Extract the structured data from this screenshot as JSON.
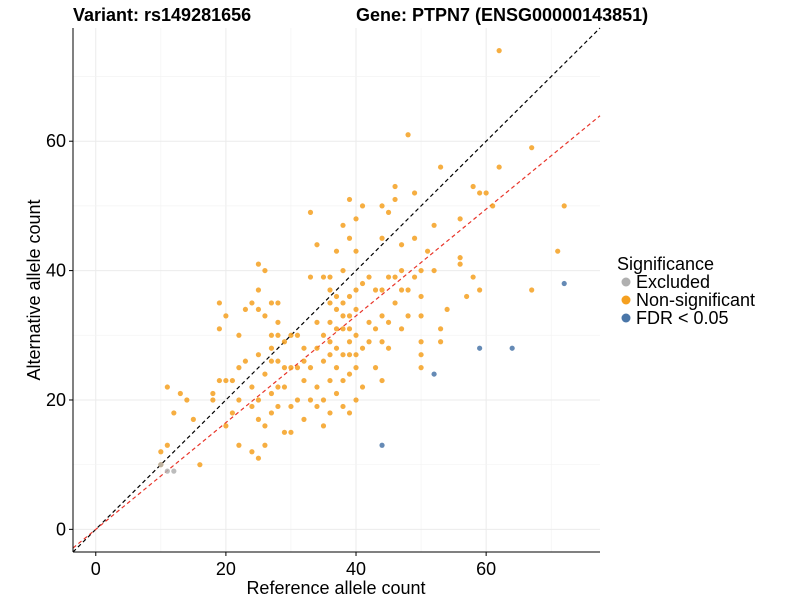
{
  "chart_data": {
    "type": "scatter",
    "title_left": "Variant: rs149281656",
    "title_right": "Gene: PTPN7 (ENSG00000143851)",
    "xlabel": "Reference allele count",
    "ylabel": "Alternative allele count",
    "xlim": [
      -3.5,
      77.5
    ],
    "ylim": [
      -3.5,
      77.5
    ],
    "x_ticks": [
      0,
      20,
      40,
      60
    ],
    "y_ticks": [
      0,
      20,
      40,
      60
    ],
    "grid": true,
    "legend": {
      "title": "Significance",
      "position": "right",
      "entries": [
        {
          "label": "Excluded",
          "color": "#b0b0b0"
        },
        {
          "label": "Non-significant",
          "color": "#f5a020"
        },
        {
          "label": "FDR < 0.05",
          "color": "#4a76a8"
        }
      ]
    },
    "reference_lines": [
      {
        "name": "y = x",
        "color": "#000000",
        "slope": 1,
        "intercept": 0
      },
      {
        "name": "fit",
        "color": "#e8352a",
        "slope": 0.825,
        "intercept": 0
      }
    ],
    "series": [
      {
        "name": "Excluded",
        "color": "#b0b0b0",
        "points": [
          [
            12,
            9
          ],
          [
            11,
            9
          ],
          [
            10,
            10
          ]
        ]
      },
      {
        "name": "FDR < 0.05",
        "color": "#4a76a8",
        "points": [
          [
            44,
            13
          ],
          [
            52,
            24
          ],
          [
            59,
            28
          ],
          [
            64,
            28
          ],
          [
            72,
            38
          ]
        ]
      },
      {
        "name": "Non-significant",
        "color": "#f5a020",
        "points": [
          [
            10,
            10
          ],
          [
            10,
            12
          ],
          [
            11,
            13
          ],
          [
            11,
            22
          ],
          [
            12,
            18
          ],
          [
            13,
            21
          ],
          [
            14,
            20
          ],
          [
            15,
            17
          ],
          [
            16,
            10
          ],
          [
            18,
            20
          ],
          [
            18,
            21
          ],
          [
            19,
            23
          ],
          [
            19,
            31
          ],
          [
            19,
            35
          ],
          [
            20,
            16
          ],
          [
            20,
            23
          ],
          [
            20,
            33
          ],
          [
            21,
            18
          ],
          [
            21,
            23
          ],
          [
            22,
            13
          ],
          [
            22,
            20
          ],
          [
            22,
            25
          ],
          [
            22,
            30
          ],
          [
            23,
            26
          ],
          [
            23,
            34
          ],
          [
            24,
            12
          ],
          [
            24,
            19
          ],
          [
            24,
            22
          ],
          [
            24,
            35
          ],
          [
            25,
            11
          ],
          [
            25,
            17
          ],
          [
            25,
            20
          ],
          [
            25,
            27
          ],
          [
            25,
            34
          ],
          [
            25,
            37
          ],
          [
            25,
            41
          ],
          [
            26,
            13
          ],
          [
            26,
            16
          ],
          [
            26,
            24
          ],
          [
            26,
            33
          ],
          [
            26,
            40
          ],
          [
            27,
            18
          ],
          [
            27,
            21
          ],
          [
            27,
            26
          ],
          [
            27,
            28
          ],
          [
            27,
            30
          ],
          [
            27,
            35
          ],
          [
            28,
            19
          ],
          [
            28,
            22
          ],
          [
            28,
            26
          ],
          [
            28,
            30
          ],
          [
            28,
            32
          ],
          [
            28,
            35
          ],
          [
            29,
            15
          ],
          [
            29,
            22
          ],
          [
            29,
            25
          ],
          [
            29,
            29
          ],
          [
            30,
            15
          ],
          [
            30,
            19
          ],
          [
            30,
            25
          ],
          [
            30,
            30
          ],
          [
            31,
            20
          ],
          [
            31,
            25
          ],
          [
            31,
            30
          ],
          [
            32,
            17
          ],
          [
            32,
            23
          ],
          [
            32,
            26
          ],
          [
            32,
            28
          ],
          [
            33,
            20
          ],
          [
            33,
            25
          ],
          [
            33,
            39
          ],
          [
            33,
            49
          ],
          [
            34,
            19
          ],
          [
            34,
            22
          ],
          [
            34,
            28
          ],
          [
            34,
            32
          ],
          [
            34,
            44
          ],
          [
            35,
            16
          ],
          [
            35,
            20
          ],
          [
            35,
            26
          ],
          [
            35,
            30
          ],
          [
            35,
            39
          ],
          [
            36,
            18
          ],
          [
            36,
            23
          ],
          [
            36,
            27
          ],
          [
            36,
            29
          ],
          [
            36,
            32
          ],
          [
            36,
            35
          ],
          [
            36,
            37
          ],
          [
            36,
            39
          ],
          [
            37,
            21
          ],
          [
            37,
            25
          ],
          [
            37,
            28
          ],
          [
            37,
            31
          ],
          [
            37,
            34
          ],
          [
            37,
            36
          ],
          [
            37,
            43
          ],
          [
            38,
            19
          ],
          [
            38,
            23
          ],
          [
            38,
            27
          ],
          [
            38,
            31
          ],
          [
            38,
            33
          ],
          [
            38,
            35
          ],
          [
            38,
            40
          ],
          [
            38,
            47
          ],
          [
            39,
            18
          ],
          [
            39,
            24
          ],
          [
            39,
            27
          ],
          [
            39,
            29
          ],
          [
            39,
            31
          ],
          [
            39,
            33
          ],
          [
            39,
            36
          ],
          [
            39,
            45
          ],
          [
            39,
            51
          ],
          [
            40,
            20
          ],
          [
            40,
            25
          ],
          [
            40,
            27
          ],
          [
            40,
            30
          ],
          [
            40,
            34
          ],
          [
            40,
            37
          ],
          [
            40,
            43
          ],
          [
            40,
            48
          ],
          [
            41,
            22
          ],
          [
            41,
            28
          ],
          [
            41,
            38
          ],
          [
            41,
            50
          ],
          [
            42,
            29
          ],
          [
            42,
            32
          ],
          [
            42,
            39
          ],
          [
            43,
            25
          ],
          [
            43,
            31
          ],
          [
            43,
            37
          ],
          [
            44,
            23
          ],
          [
            44,
            29
          ],
          [
            44,
            33
          ],
          [
            44,
            37
          ],
          [
            44,
            45
          ],
          [
            44,
            50
          ],
          [
            45,
            28
          ],
          [
            45,
            32
          ],
          [
            45,
            39
          ],
          [
            45,
            49
          ],
          [
            46,
            35
          ],
          [
            46,
            39
          ],
          [
            46,
            51
          ],
          [
            46,
            53
          ],
          [
            47,
            31
          ],
          [
            47,
            37
          ],
          [
            47,
            40
          ],
          [
            47,
            44
          ],
          [
            48,
            33
          ],
          [
            48,
            37
          ],
          [
            48,
            61
          ],
          [
            49,
            39
          ],
          [
            49,
            45
          ],
          [
            49,
            52
          ],
          [
            50,
            25
          ],
          [
            50,
            27
          ],
          [
            50,
            29
          ],
          [
            50,
            33
          ],
          [
            50,
            36
          ],
          [
            50,
            40
          ],
          [
            51,
            43
          ],
          [
            52,
            40
          ],
          [
            52,
            47
          ],
          [
            53,
            29
          ],
          [
            53,
            56
          ],
          [
            53,
            31
          ],
          [
            54,
            34
          ],
          [
            56,
            42
          ],
          [
            56,
            41
          ],
          [
            56,
            48
          ],
          [
            57,
            36
          ],
          [
            58,
            53
          ],
          [
            58,
            39
          ],
          [
            59,
            37
          ],
          [
            59,
            52
          ],
          [
            60,
            52
          ],
          [
            61,
            50
          ],
          [
            62,
            56
          ],
          [
            62,
            74
          ],
          [
            67,
            37
          ],
          [
            67,
            59
          ],
          [
            71,
            43
          ],
          [
            72,
            50
          ]
        ]
      }
    ]
  }
}
